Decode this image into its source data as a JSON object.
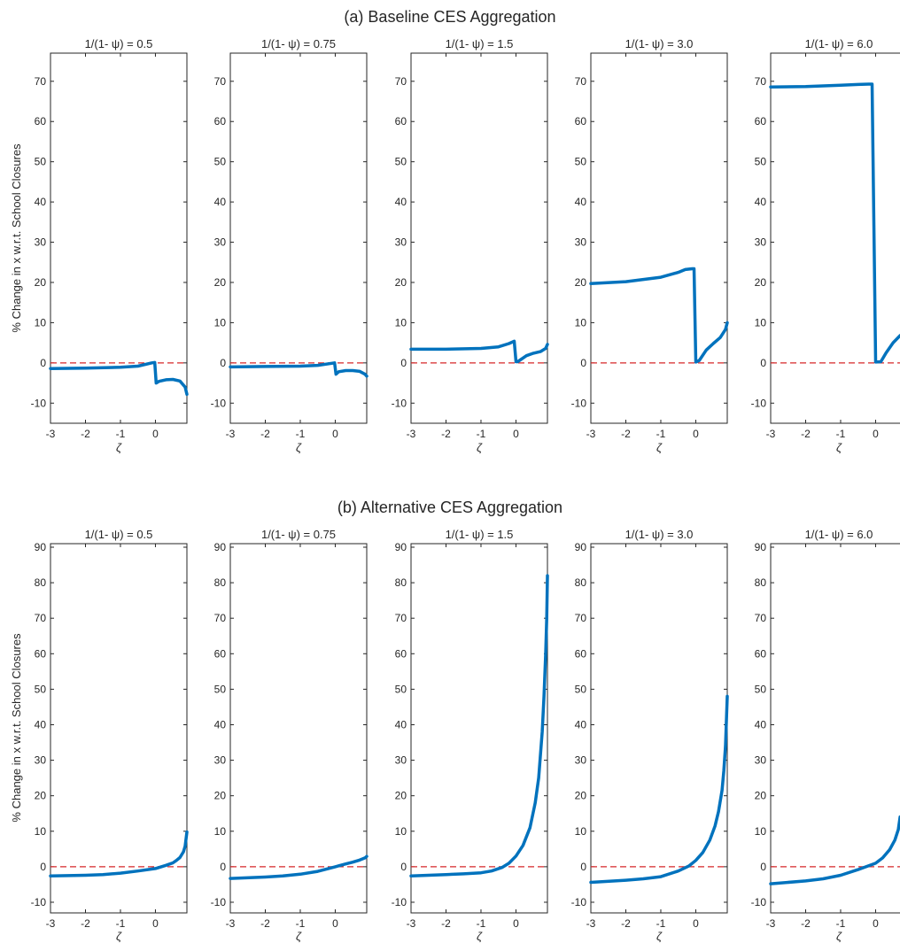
{
  "figure": {
    "sections": [
      {
        "title": "(a) Baseline CES Aggregation",
        "ylabel": "% Change in x w.r.t. School Closures",
        "ylim": [
          -15,
          77
        ],
        "yticks": [
          -10,
          0,
          10,
          20,
          30,
          40,
          50,
          60,
          70
        ],
        "panels": [
          {
            "title": "1/(1- ψ) = 0.5"
          },
          {
            "title": "1/(1- ψ) = 0.75"
          },
          {
            "title": "1/(1- ψ) = 1.5"
          },
          {
            "title": "1/(1- ψ) = 3.0"
          },
          {
            "title": "1/(1- ψ) = 6.0"
          }
        ]
      },
      {
        "title": "(b) Alternative CES Aggregation",
        "ylabel": "% Change in x w.r.t. School Closures",
        "ylim": [
          -13,
          91
        ],
        "yticks": [
          -10,
          0,
          10,
          20,
          30,
          40,
          50,
          60,
          70,
          80,
          90
        ],
        "panels": [
          {
            "title": "1/(1- ψ) = 0.5"
          },
          {
            "title": "1/(1- ψ) = 0.75"
          },
          {
            "title": "1/(1- ψ) = 1.5"
          },
          {
            "title": "1/(1- ψ) = 3.0"
          },
          {
            "title": "1/(1- ψ) = 6.0"
          }
        ]
      }
    ],
    "xlabel": "ζ",
    "xlim": [
      -3,
      0.9
    ],
    "xticks": [
      -3,
      -2,
      -1,
      0
    ],
    "colors": {
      "line": "#0072BD",
      "zero_line": "#D62728",
      "axes": "#262626"
    }
  },
  "chart_data": [
    {
      "type": "line",
      "title": "1/(1- ψ) = 0.5",
      "xlabel": "ζ",
      "ylabel": "% Change in x w.r.t. School Closures",
      "ylim": [
        -15,
        77
      ],
      "series": [
        {
          "x": [
            -3,
            -2,
            -1,
            -0.5,
            -0.1,
            -0.02,
            0.02,
            0.1,
            0.3,
            0.5,
            0.7,
            0.85,
            0.9
          ],
          "y": [
            -1.4,
            -1.3,
            -1.1,
            -0.8,
            0.0,
            0.1,
            -5.0,
            -4.6,
            -4.2,
            -4.1,
            -4.5,
            -6.0,
            -7.8
          ]
        }
      ]
    },
    {
      "type": "line",
      "title": "1/(1- ψ) = 0.75",
      "xlabel": "ζ",
      "ylim": [
        -15,
        77
      ],
      "series": [
        {
          "x": [
            -3,
            -2,
            -1,
            -0.5,
            -0.1,
            -0.02,
            0.02,
            0.1,
            0.3,
            0.5,
            0.7,
            0.85,
            0.9
          ],
          "y": [
            -1.0,
            -0.9,
            -0.8,
            -0.6,
            -0.1,
            0.0,
            -2.8,
            -2.2,
            -1.9,
            -1.9,
            -2.1,
            -2.8,
            -3.3
          ]
        }
      ]
    },
    {
      "type": "line",
      "title": "1/(1- ψ) = 1.5",
      "xlabel": "ζ",
      "ylim": [
        -15,
        77
      ],
      "series": [
        {
          "x": [
            -3,
            -2,
            -1,
            -0.5,
            -0.2,
            -0.05,
            0.0,
            0.05,
            0.3,
            0.5,
            0.7,
            0.85,
            0.9
          ],
          "y": [
            3.4,
            3.4,
            3.6,
            4.0,
            4.8,
            5.4,
            0.3,
            0.3,
            1.8,
            2.4,
            2.8,
            3.6,
            4.6
          ]
        }
      ]
    },
    {
      "type": "line",
      "title": "1/(1- ψ) = 3.0",
      "xlabel": "ζ",
      "ylim": [
        -15,
        77
      ],
      "series": [
        {
          "x": [
            -3,
            -2,
            -1,
            -0.5,
            -0.3,
            -0.1,
            -0.05,
            0.0,
            0.1,
            0.3,
            0.5,
            0.7,
            0.85,
            0.9
          ],
          "y": [
            19.7,
            20.2,
            21.3,
            22.5,
            23.2,
            23.4,
            23.4,
            0.2,
            0.6,
            3.2,
            4.8,
            6.3,
            8.3,
            10.0
          ]
        }
      ]
    },
    {
      "type": "line",
      "title": "1/(1- ψ) = 6.0",
      "xlabel": "ζ",
      "ylim": [
        -15,
        77
      ],
      "series": [
        {
          "x": [
            -3,
            -2,
            -1,
            -0.5,
            -0.2,
            -0.1,
            0.0,
            0.15,
            0.3,
            0.5,
            0.7
          ],
          "y": [
            68.6,
            68.7,
            69.0,
            69.2,
            69.3,
            69.3,
            0.2,
            0.3,
            2.5,
            5.0,
            6.8
          ]
        }
      ]
    },
    {
      "type": "line",
      "title": "1/(1- ψ) = 0.5",
      "xlabel": "ζ",
      "ylabel": "% Change in x w.r.t. School Closures",
      "ylim": [
        -13,
        91
      ],
      "series": [
        {
          "x": [
            -3,
            -2,
            -1.5,
            -1,
            -0.5,
            0,
            0.3,
            0.5,
            0.6,
            0.7,
            0.8,
            0.85,
            0.9
          ],
          "y": [
            -2.6,
            -2.4,
            -2.2,
            -1.8,
            -1.2,
            -0.5,
            0.4,
            1.1,
            1.8,
            2.6,
            4.2,
            5.8,
            9.8
          ]
        }
      ]
    },
    {
      "type": "line",
      "title": "1/(1- ψ) = 0.75",
      "xlabel": "ζ",
      "ylim": [
        -13,
        91
      ],
      "series": [
        {
          "x": [
            -3,
            -2,
            -1.5,
            -1,
            -0.5,
            0,
            0.3,
            0.5,
            0.7,
            0.85,
            0.9
          ],
          "y": [
            -3.3,
            -2.9,
            -2.6,
            -2.1,
            -1.3,
            0.0,
            0.8,
            1.3,
            1.9,
            2.5,
            2.9
          ]
        }
      ]
    },
    {
      "type": "line",
      "title": "1/(1- ψ) = 1.5",
      "xlabel": "ζ",
      "ylim": [
        -13,
        91
      ],
      "series": [
        {
          "x": [
            -3,
            -2,
            -1.5,
            -1,
            -0.7,
            -0.4,
            -0.2,
            0,
            0.2,
            0.4,
            0.55,
            0.65,
            0.75,
            0.8,
            0.85,
            0.88,
            0.9
          ],
          "y": [
            -2.6,
            -2.2,
            -2.0,
            -1.7,
            -1.2,
            -0.2,
            1.0,
            3.0,
            6.0,
            11.0,
            18.0,
            25.0,
            38.0,
            48.0,
            60.0,
            70.0,
            82.0
          ]
        }
      ]
    },
    {
      "type": "line",
      "title": "1/(1- ψ) = 3.0",
      "xlabel": "ζ",
      "ylim": [
        -13,
        91
      ],
      "series": [
        {
          "x": [
            -3,
            -2,
            -1.5,
            -1,
            -0.5,
            -0.2,
            0,
            0.2,
            0.4,
            0.55,
            0.65,
            0.75,
            0.8,
            0.85,
            0.9
          ],
          "y": [
            -4.4,
            -3.8,
            -3.4,
            -2.8,
            -1.2,
            0.2,
            1.8,
            4.0,
            7.5,
            11.5,
            15.5,
            21.5,
            27.0,
            34.0,
            48.0
          ]
        }
      ]
    },
    {
      "type": "line",
      "title": "1/(1- ψ) = 6.0",
      "xlabel": "ζ",
      "ylim": [
        -13,
        91
      ],
      "series": [
        {
          "x": [
            -3,
            -2,
            -1.5,
            -1,
            -0.5,
            0,
            0.2,
            0.4,
            0.55,
            0.65,
            0.7
          ],
          "y": [
            -4.8,
            -4.0,
            -3.4,
            -2.4,
            -0.8,
            1.0,
            2.5,
            4.8,
            7.5,
            10.5,
            14.0
          ]
        }
      ]
    }
  ]
}
